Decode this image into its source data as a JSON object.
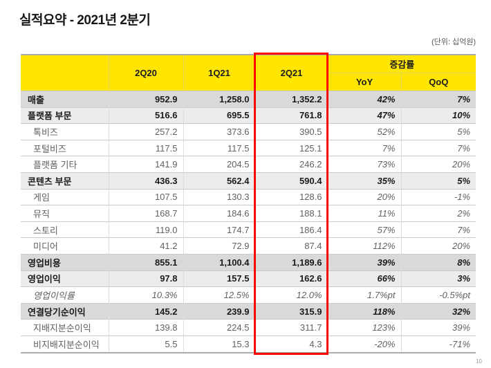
{
  "page": {
    "title": "실적요약 - 2021년 2분기",
    "unit_note": "(단위: 십억원)",
    "page_number": "10"
  },
  "table": {
    "header": {
      "quarters": [
        "2Q20",
        "1Q21",
        "2Q21"
      ],
      "change_group": "증감률",
      "change_cols": [
        "YoY",
        "QoQ"
      ],
      "highlighted_quarter": "2Q21"
    },
    "rows": [
      {
        "label": "매출",
        "values": [
          "952.9",
          "1,258.0",
          "1,352.2"
        ],
        "yoy": "42%",
        "qoq": "7%",
        "style": "primary"
      },
      {
        "label": "플랫폼 부문",
        "values": [
          "516.6",
          "695.5",
          "761.8"
        ],
        "yoy": "47%",
        "qoq": "10%",
        "style": "section"
      },
      {
        "label": "톡비즈",
        "values": [
          "257.2",
          "373.6",
          "390.5"
        ],
        "yoy": "52%",
        "qoq": "5%",
        "style": "sub"
      },
      {
        "label": "포털비즈",
        "values": [
          "117.5",
          "117.5",
          "125.1"
        ],
        "yoy": "7%",
        "qoq": "7%",
        "style": "sub"
      },
      {
        "label": "플랫폼 기타",
        "values": [
          "141.9",
          "204.5",
          "246.2"
        ],
        "yoy": "73%",
        "qoq": "20%",
        "style": "sub"
      },
      {
        "label": "콘텐츠 부문",
        "values": [
          "436.3",
          "562.4",
          "590.4"
        ],
        "yoy": "35%",
        "qoq": "5%",
        "style": "section"
      },
      {
        "label": "게임",
        "values": [
          "107.5",
          "130.3",
          "128.6"
        ],
        "yoy": "20%",
        "qoq": "-1%",
        "style": "sub"
      },
      {
        "label": "뮤직",
        "values": [
          "168.7",
          "184.6",
          "188.1"
        ],
        "yoy": "11%",
        "qoq": "2%",
        "style": "sub"
      },
      {
        "label": "스토리",
        "values": [
          "119.0",
          "174.7",
          "186.4"
        ],
        "yoy": "57%",
        "qoq": "7%",
        "style": "sub"
      },
      {
        "label": "미디어",
        "values": [
          "41.2",
          "72.9",
          "87.4"
        ],
        "yoy": "112%",
        "qoq": "20%",
        "style": "sub"
      },
      {
        "label": "영업비용",
        "values": [
          "855.1",
          "1,100.4",
          "1,189.6"
        ],
        "yoy": "39%",
        "qoq": "8%",
        "style": "primary"
      },
      {
        "label": "영업이익",
        "values": [
          "97.8",
          "157.5",
          "162.6"
        ],
        "yoy": "66%",
        "qoq": "3%",
        "style": "section"
      },
      {
        "label": "영업이익률",
        "values": [
          "10.3%",
          "12.5%",
          "12.0%"
        ],
        "yoy": "1.7%pt",
        "qoq": "-0.5%pt",
        "style": "ratio"
      },
      {
        "label": "연결당기순이익",
        "values": [
          "145.2",
          "239.9",
          "315.9"
        ],
        "yoy": "118%",
        "qoq": "32%",
        "style": "primary"
      },
      {
        "label": "지배지분순이익",
        "values": [
          "139.8",
          "224.5",
          "311.7"
        ],
        "yoy": "123%",
        "qoq": "39%",
        "style": "sub"
      },
      {
        "label": "비지배지분순이익",
        "values": [
          "5.5",
          "15.3",
          "4.3"
        ],
        "yoy": "-20%",
        "qoq": "-71%",
        "style": "sub"
      }
    ],
    "colors": {
      "header_yellow": "#FFE500",
      "highlight_red": "#FF0000",
      "primary_row_gray": "#D9D9D9",
      "section_row_gray": "#ECECEC",
      "table_border_gray": "#ABABAB"
    }
  }
}
